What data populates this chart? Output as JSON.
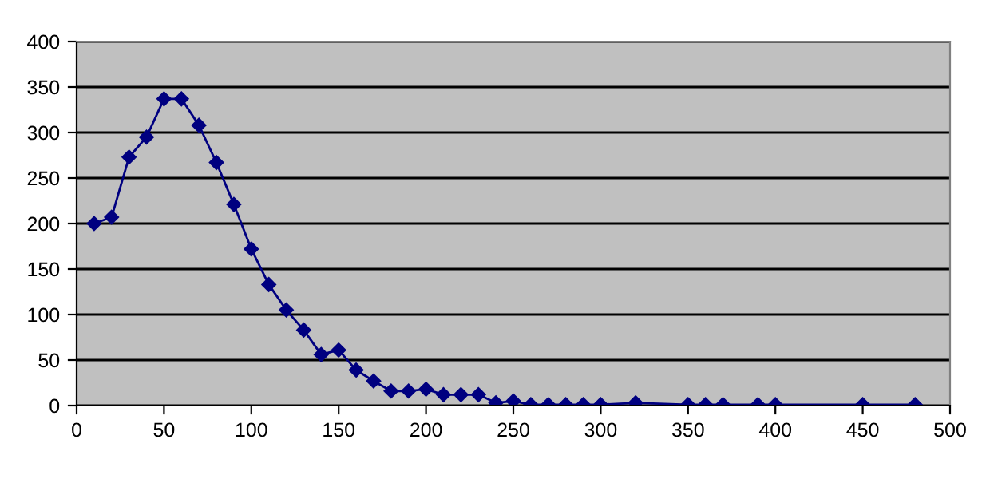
{
  "chart_data": {
    "type": "line",
    "x": [
      10,
      20,
      30,
      40,
      50,
      60,
      70,
      80,
      90,
      100,
      110,
      120,
      130,
      140,
      150,
      160,
      170,
      180,
      190,
      200,
      210,
      220,
      230,
      240,
      250,
      260,
      270,
      280,
      290,
      300,
      320,
      350,
      360,
      370,
      390,
      400,
      450,
      480
    ],
    "series": [
      {
        "color": "#000080",
        "values": [
          200,
          207,
          273,
          295,
          337,
          337,
          308,
          267,
          221,
          172,
          133,
          105,
          83,
          56,
          61,
          39,
          27,
          16,
          16,
          18,
          12,
          12,
          12,
          3,
          5,
          1,
          1,
          1,
          1,
          1,
          3,
          1,
          1,
          1,
          1,
          1,
          1,
          1
        ]
      }
    ],
    "xlim": [
      0,
      500
    ],
    "xticks": [
      0,
      50,
      100,
      150,
      200,
      250,
      300,
      350,
      400,
      450,
      500
    ],
    "ylim": [
      0,
      400
    ],
    "yticks": [
      0,
      50,
      100,
      150,
      200,
      250,
      300,
      350,
      400
    ],
    "grid": "y",
    "marker": "diamond",
    "line_style": "solid",
    "legend": false
  }
}
